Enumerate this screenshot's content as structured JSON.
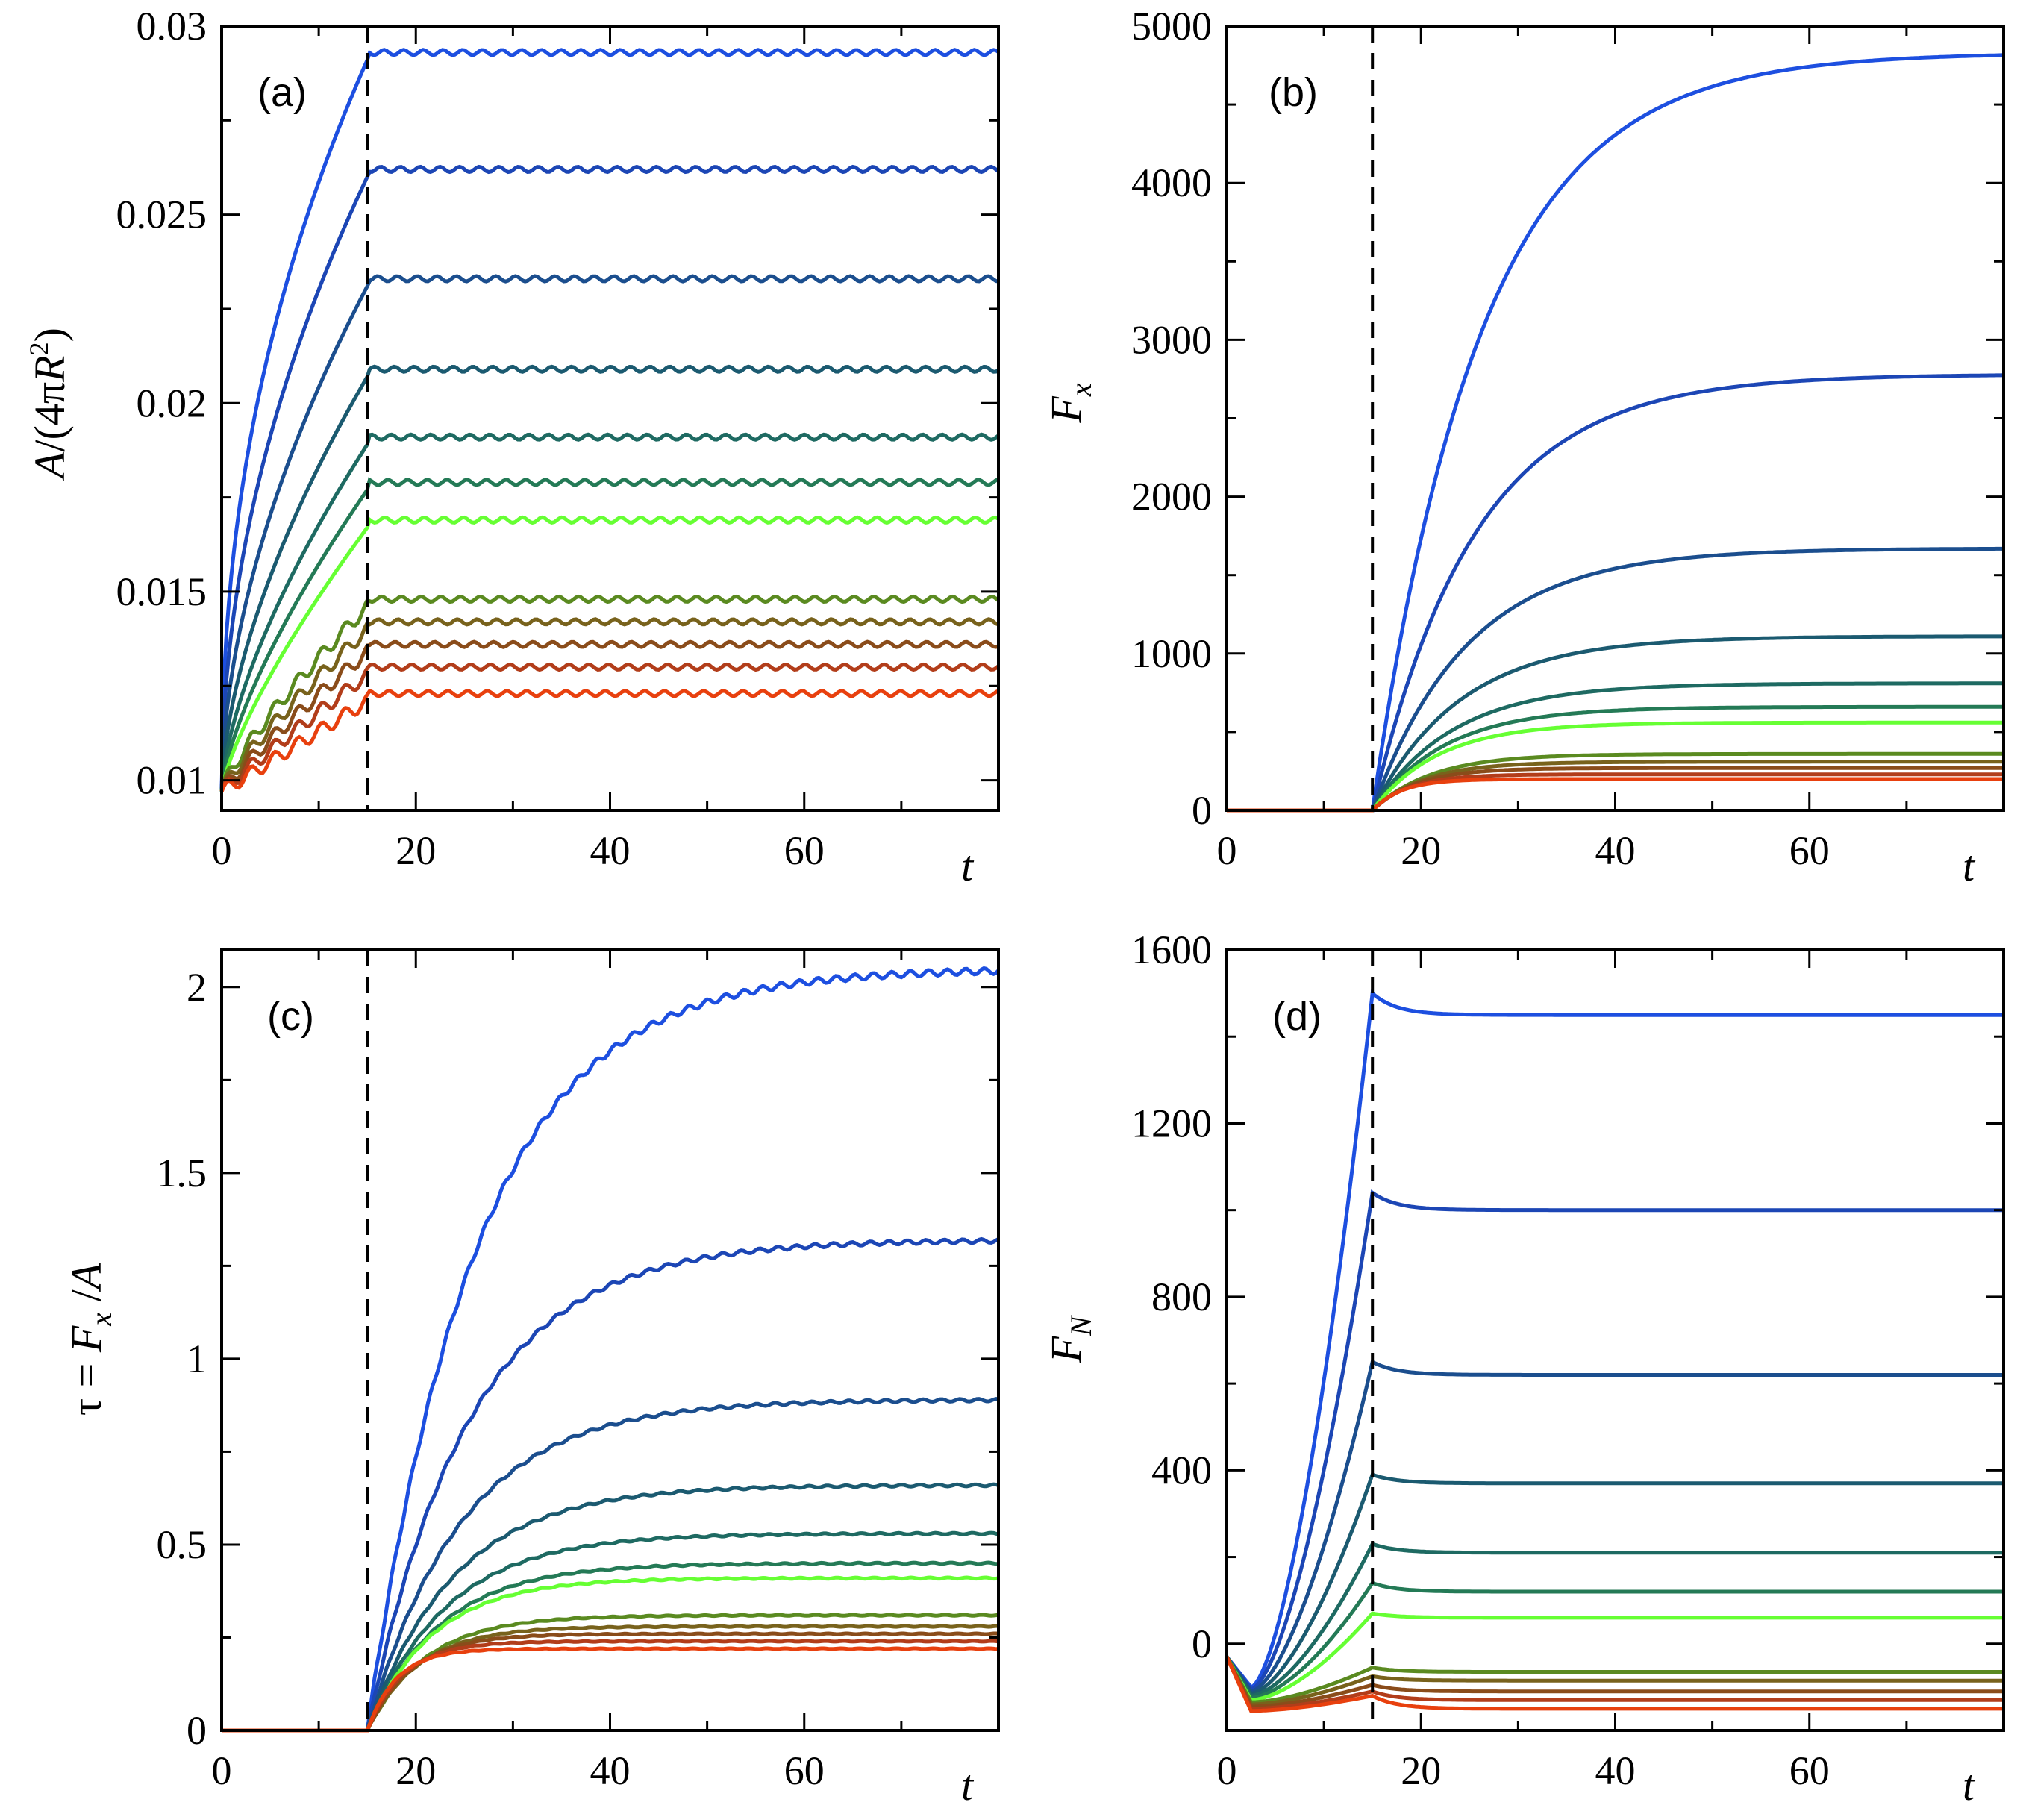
{
  "colors": [
    "#1d4fe0",
    "#1c46b5",
    "#1b4e8e",
    "#1b5a70",
    "#1e6a62",
    "#247a56",
    "#66ff33",
    "#5a8a20",
    "#78621c",
    "#8a4c1a",
    "#b23d1a",
    "#e8400e"
  ],
  "chart_data": [
    {
      "panel": "(a)",
      "type": "line",
      "xlabel": "t",
      "ylabel": "A/(4πR²)",
      "xlim": [
        0,
        80
      ],
      "ylim": [
        0.0092,
        0.03
      ],
      "xticks": [
        "0",
        "20",
        "40",
        "60"
      ],
      "yticks": [
        "0.01",
        "0.015",
        "0.02",
        "0.025",
        "0.03"
      ],
      "series_final_values": [
        0.0293,
        0.0262,
        0.0233,
        0.0209,
        0.0191,
        0.0179,
        0.0169,
        0.0148,
        0.0142,
        0.0136,
        0.013,
        0.0123
      ],
      "start_value": 0.0097,
      "t_switch": 15
    },
    {
      "panel": "(b)",
      "type": "line",
      "xlabel": "t",
      "ylabel": "F_x",
      "xlim": [
        0,
        80
      ],
      "ylim": [
        0,
        5000
      ],
      "xticks": [
        "0",
        "20",
        "40",
        "60"
      ],
      "yticks": [
        "0",
        "1000",
        "2000",
        "3000",
        "4000",
        "5000"
      ],
      "series_final_values": [
        4830,
        2780,
        1670,
        1110,
        810,
        660,
        560,
        360,
        310,
        270,
        230,
        200
      ],
      "t_switch": 15
    },
    {
      "panel": "(c)",
      "type": "line",
      "xlabel": "t",
      "ylabel": "τ = F_x /A",
      "xlim": [
        0,
        80
      ],
      "ylim": [
        0,
        2.1
      ],
      "xticks": [
        "0",
        "20",
        "40",
        "60"
      ],
      "yticks": [
        "0",
        "0.5",
        "1",
        "1.5",
        "2"
      ],
      "series_final_values": [
        2.05,
        1.32,
        0.89,
        0.66,
        0.53,
        0.45,
        0.41,
        0.31,
        0.28,
        0.26,
        0.24,
        0.22
      ],
      "t_switch": 15
    },
    {
      "panel": "(d)",
      "type": "line",
      "xlabel": "t",
      "ylabel": "F_N",
      "xlim": [
        0,
        80
      ],
      "ylim": [
        -200,
        1600
      ],
      "xticks": [
        "0",
        "20",
        "40",
        "60"
      ],
      "yticks": [
        "0",
        "400",
        "800",
        "1200",
        "1600"
      ],
      "series_peak_values": [
        1500,
        1040,
        650,
        390,
        230,
        140,
        70,
        -55,
        -75,
        -95,
        -110,
        -120
      ],
      "series_final_values": [
        1450,
        1000,
        620,
        370,
        210,
        120,
        60,
        -65,
        -85,
        -110,
        -130,
        -150
      ],
      "start_value": -30,
      "t_switch": 15
    }
  ]
}
